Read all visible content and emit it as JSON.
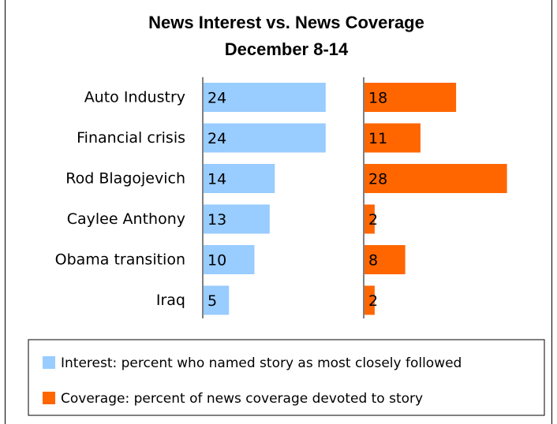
{
  "chart_data": {
    "type": "bar",
    "title": "News Interest vs. News Coverage",
    "subtitle": "December 8-14",
    "categories": [
      "Auto Industry",
      "Financial crisis",
      "Rod Blagojevich",
      "Caylee Anthony",
      "Obama transition",
      "Iraq"
    ],
    "series": [
      {
        "name": "Interest: percent who named story as most closely followed",
        "color": "#99CCFF",
        "values": [
          24,
          24,
          14,
          13,
          10,
          5
        ]
      },
      {
        "name": "Coverage: percent of news coverage devoted to story",
        "color": "#FF6600",
        "values": [
          18,
          11,
          28,
          2,
          8,
          2
        ]
      }
    ],
    "orientation": "horizontal",
    "layout": "paired-panels",
    "grid": false,
    "legend_position": "bottom"
  }
}
